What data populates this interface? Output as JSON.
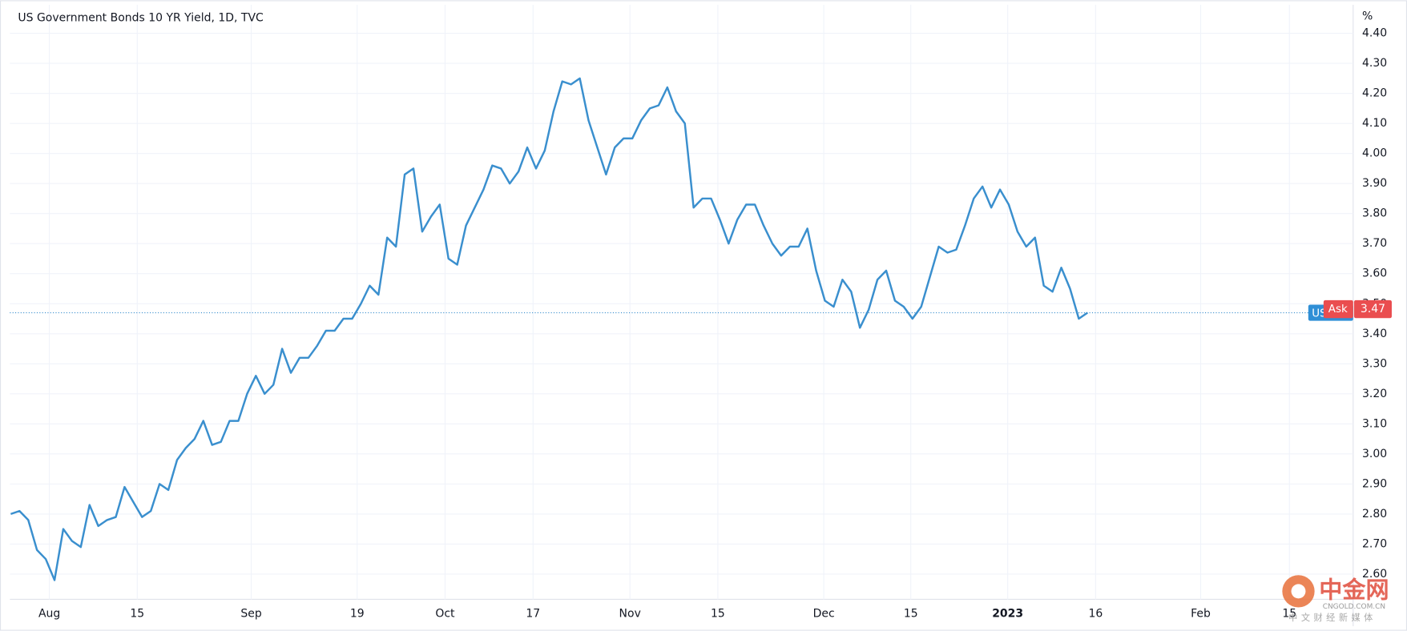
{
  "chart_data": {
    "type": "line",
    "title": "US Government Bonds 10 YR Yield, 1D, TVC",
    "y_unit": "%",
    "series": [
      {
        "name": "US",
        "color": "#3a8fce",
        "values": [
          2.8,
          2.81,
          2.78,
          2.68,
          2.65,
          2.58,
          2.75,
          2.71,
          2.69,
          2.83,
          2.76,
          2.78,
          2.79,
          2.89,
          2.84,
          2.79,
          2.81,
          2.9,
          2.88,
          2.98,
          3.02,
          3.05,
          3.11,
          3.03,
          3.04,
          3.11,
          3.11,
          3.2,
          3.26,
          3.2,
          3.23,
          3.35,
          3.27,
          3.32,
          3.32,
          3.36,
          3.41,
          3.41,
          3.45,
          3.45,
          3.5,
          3.56,
          3.53,
          3.72,
          3.69,
          3.93,
          3.95,
          3.74,
          3.79,
          3.83,
          3.65,
          3.63,
          3.76,
          3.82,
          3.88,
          3.96,
          3.95,
          3.9,
          3.94,
          4.02,
          3.95,
          4.01,
          4.14,
          4.24,
          4.23,
          4.25,
          4.11,
          4.02,
          3.93,
          4.02,
          4.05,
          4.05,
          4.11,
          4.15,
          4.16,
          4.22,
          4.14,
          4.1,
          3.82,
          3.85,
          3.85,
          3.78,
          3.7,
          3.78,
          3.83,
          3.83,
          3.76,
          3.7,
          3.66,
          3.69,
          3.69,
          3.75,
          3.61,
          3.51,
          3.49,
          3.58,
          3.54,
          3.42,
          3.48,
          3.58,
          3.61,
          3.51,
          3.49,
          3.45,
          3.49,
          3.59,
          3.69,
          3.67,
          3.68,
          3.76,
          3.85,
          3.89,
          3.82,
          3.88,
          3.83,
          3.74,
          3.69,
          3.72,
          3.56,
          3.54,
          3.62,
          3.55,
          3.45,
          3.47
        ]
      }
    ],
    "last_value": 3.47,
    "price_tag": "Ask",
    "xlim": [
      -0.1,
      153.34
    ],
    "xticks": [
      {
        "value": 4.41,
        "label": "Aug"
      },
      {
        "value": 14.45,
        "label": "15"
      },
      {
        "value": 27.47,
        "label": "Sep"
      },
      {
        "value": 39.57,
        "label": "19"
      },
      {
        "value": 49.61,
        "label": "Oct"
      },
      {
        "value": 59.66,
        "label": "17"
      },
      {
        "value": 70.73,
        "label": "Nov"
      },
      {
        "value": 80.77,
        "label": "15"
      },
      {
        "value": 92.87,
        "label": "Dec"
      },
      {
        "value": 102.81,
        "label": "15"
      },
      {
        "value": 113.88,
        "label": "2023"
      },
      {
        "value": 123.92,
        "label": "16"
      },
      {
        "value": 135.92,
        "label": "Feb"
      },
      {
        "value": 146.06,
        "label": "15"
      }
    ],
    "ylim": [
      2.516,
      4.495
    ],
    "yticks": [
      {
        "value": 2.6,
        "label": "2.60"
      },
      {
        "value": 2.7,
        "label": "2.70"
      },
      {
        "value": 2.8,
        "label": "2.80"
      },
      {
        "value": 2.9,
        "label": "2.90"
      },
      {
        "value": 3.0,
        "label": "3.00"
      },
      {
        "value": 3.1,
        "label": "3.10"
      },
      {
        "value": 3.2,
        "label": "3.20"
      },
      {
        "value": 3.3,
        "label": "3.30"
      },
      {
        "value": 3.4,
        "label": "3.40"
      },
      {
        "value": 3.5,
        "label": "3.50"
      },
      {
        "value": 3.6,
        "label": "3.60"
      },
      {
        "value": 3.7,
        "label": "3.70"
      },
      {
        "value": 3.8,
        "label": "3.80"
      },
      {
        "value": 3.9,
        "label": "3.90"
      },
      {
        "value": 4.0,
        "label": "4.00"
      },
      {
        "value": 4.1,
        "label": "4.10"
      },
      {
        "value": 4.2,
        "label": "4.20"
      },
      {
        "value": 4.3,
        "label": "4.30"
      },
      {
        "value": 4.4,
        "label": "4.40"
      }
    ],
    "grid": true,
    "watermark": {
      "logo": "中金网",
      "site": "CNGOLD.COM.CN",
      "slogan": "中文财经新媒体"
    }
  }
}
